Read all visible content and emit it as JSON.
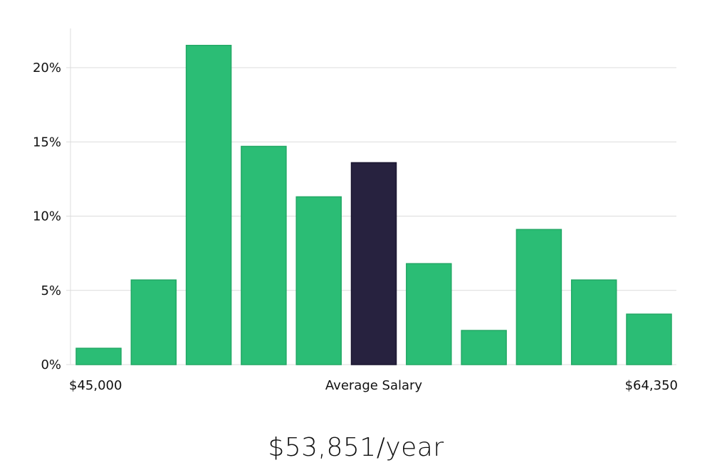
{
  "chart_data": {
    "type": "bar",
    "title": "",
    "xlabel": "Average Salary",
    "ylabel": "",
    "x_range_labels": {
      "min": "$45,000",
      "max": "$64,350"
    },
    "ylim": [
      0,
      22
    ],
    "yticks": [
      0,
      5,
      10,
      15,
      20
    ],
    "ytick_labels": [
      "0%",
      "5%",
      "10%",
      "15%",
      "20%"
    ],
    "grid": true,
    "values": [
      1.1,
      5.7,
      21.5,
      14.7,
      11.3,
      13.6,
      6.8,
      2.3,
      9.1,
      5.7,
      3.4
    ],
    "highlight_index": 5,
    "colors": {
      "bar": "#2bbd75",
      "highlight": "#27223f"
    }
  },
  "summary": "$53,851/year"
}
